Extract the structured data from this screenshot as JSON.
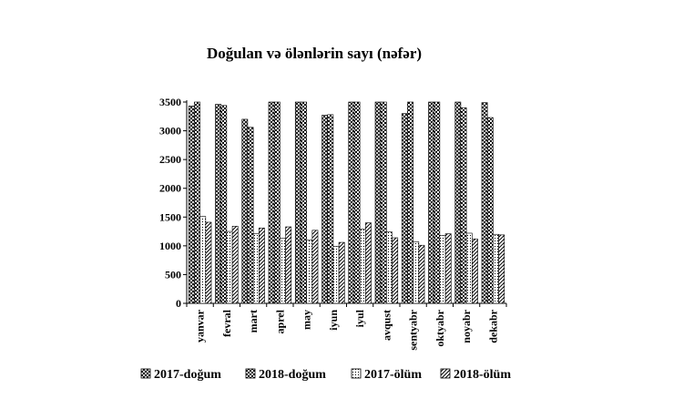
{
  "chart_data": {
    "type": "bar",
    "title": "Doğulan və ölənlərin sayı (nəfər)",
    "xlabel": "",
    "ylabel": "",
    "ylim": [
      0,
      3500
    ],
    "yticks": [
      0,
      500,
      1000,
      1500,
      2000,
      2500,
      3000,
      3500
    ],
    "grid": false,
    "legend_position": "bottom",
    "categories": [
      "yanvar",
      "fevral",
      "mart",
      "aprel",
      "may",
      "iyun",
      "iyul",
      "avqust",
      "sentyabr",
      "oktyabr",
      "noyabr",
      "dekabr"
    ],
    "series": [
      {
        "name": "2017-doğum",
        "pattern": "crosshatch",
        "color": "#000000",
        "values": [
          3430,
          3460,
          3200,
          3500,
          3500,
          3270,
          3500,
          3500,
          3300,
          3500,
          3500,
          3490
        ]
      },
      {
        "name": "2018-doğum",
        "pattern": "checker",
        "color": "#000000",
        "values": [
          3500,
          3440,
          3060,
          3500,
          3500,
          3280,
          3500,
          3500,
          3500,
          3500,
          3400,
          3230
        ]
      },
      {
        "name": "2017-ölüm",
        "pattern": "dots",
        "color": "#000000",
        "values": [
          1510,
          1250,
          1210,
          1130,
          1100,
          990,
          1290,
          1240,
          1070,
          1180,
          1220,
          1200
        ]
      },
      {
        "name": "2018-ölüm",
        "pattern": "diagonal",
        "color": "#000000",
        "values": [
          1410,
          1340,
          1310,
          1330,
          1270,
          1060,
          1400,
          1140,
          1010,
          1210,
          1120,
          1190
        ]
      }
    ]
  }
}
